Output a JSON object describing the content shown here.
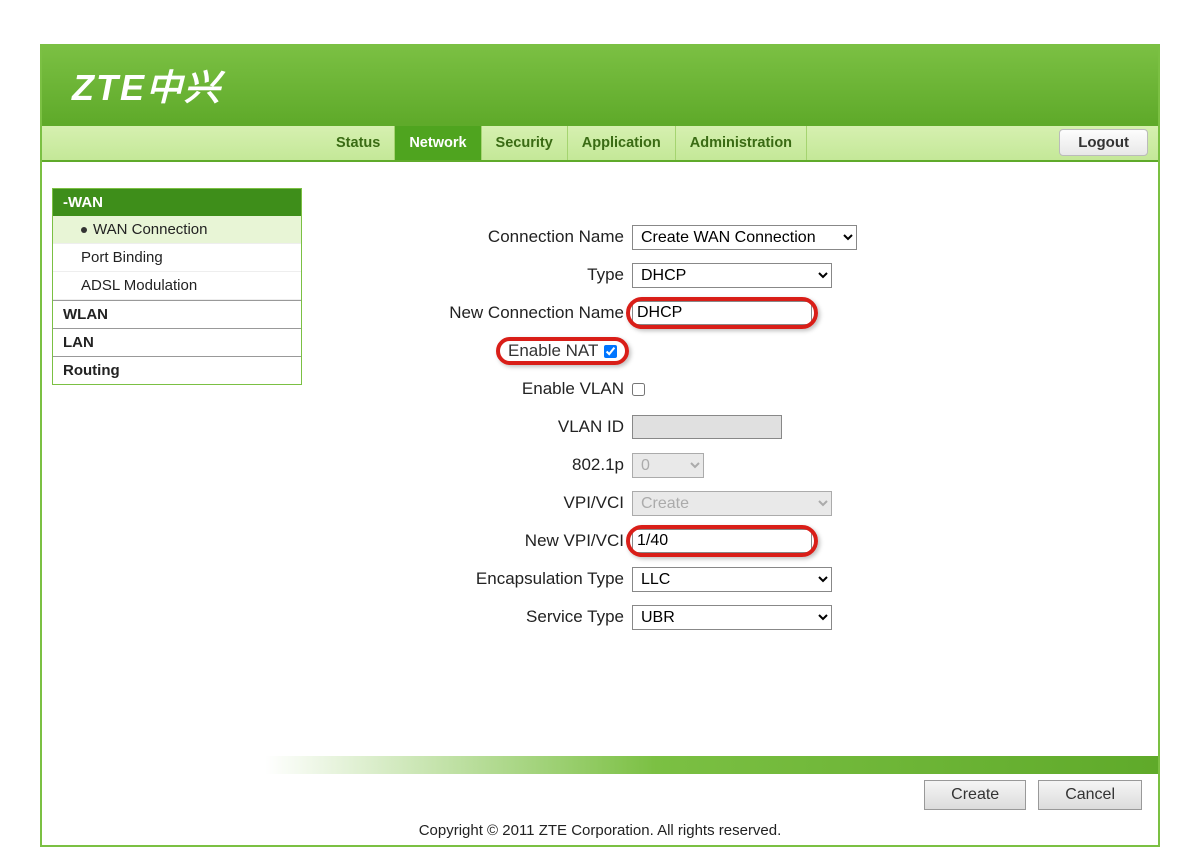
{
  "header": {
    "logo": "ZTE中兴"
  },
  "nav": {
    "tabs": [
      "Status",
      "Network",
      "Security",
      "Application",
      "Administration"
    ],
    "active_index": 1,
    "logout": "Logout"
  },
  "sidebar": {
    "header": "-WAN",
    "wan_items": [
      "WAN Connection",
      "Port Binding",
      "ADSL Modulation"
    ],
    "wan_active_index": 0,
    "groups": [
      "WLAN",
      "LAN",
      "Routing"
    ]
  },
  "form": {
    "labels": {
      "connection_name": "Connection Name",
      "type": "Type",
      "new_connection_name": "New Connection Name",
      "enable_nat": "Enable NAT",
      "enable_vlan": "Enable VLAN",
      "vlan_id": "VLAN ID",
      "dot1p": "802.1p",
      "vpi_vci": "VPI/VCI",
      "new_vpi_vci": "New VPI/VCI",
      "encapsulation_type": "Encapsulation Type",
      "service_type": "Service Type"
    },
    "values": {
      "connection_name": "Create WAN Connection",
      "type": "DHCP",
      "new_connection_name": "DHCP",
      "enable_nat": true,
      "enable_vlan": false,
      "vlan_id": "",
      "dot1p": "0",
      "vpi_vci": "Create",
      "new_vpi_vci": "1/40",
      "encapsulation_type": "LLC",
      "service_type": "UBR"
    }
  },
  "buttons": {
    "create": "Create",
    "cancel": "Cancel"
  },
  "footer": {
    "copyright": "Copyright © 2011 ZTE Corporation. All rights reserved."
  },
  "colors": {
    "brand_green_dark": "#5faa2a",
    "brand_green": "#7bc043",
    "highlight_red": "#d91e18"
  }
}
